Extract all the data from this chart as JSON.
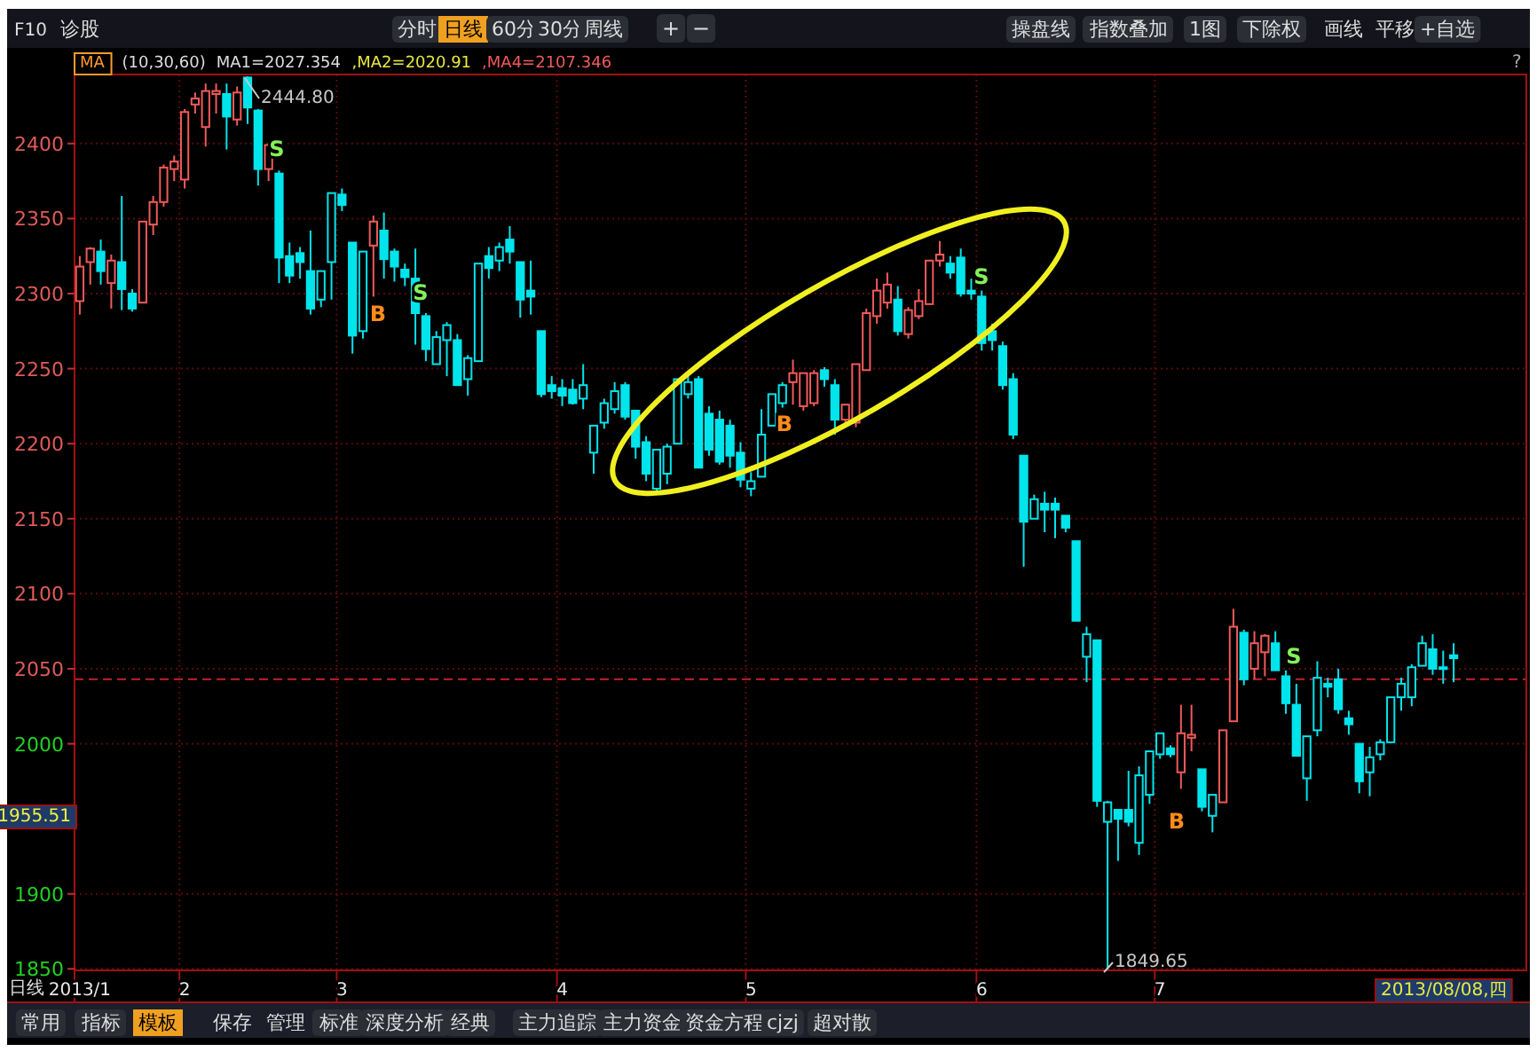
{
  "chart_data": {
    "type": "candlestick",
    "categories": [
      "2013/1",
      null,
      null,
      null,
      null,
      null,
      null,
      null,
      null,
      null,
      "2",
      null,
      null,
      null,
      null,
      null,
      null,
      null,
      null,
      null,
      null,
      null,
      null,
      null,
      null,
      "3",
      null,
      null,
      null,
      null,
      null,
      null,
      null,
      null,
      null,
      null,
      null,
      null,
      null,
      null,
      null,
      null,
      null,
      null,
      null,
      null,
      "4",
      null,
      null,
      null,
      null,
      null,
      null,
      null,
      null,
      null,
      null,
      null,
      null,
      null,
      null,
      null,
      null,
      null,
      "5",
      null,
      null,
      null,
      null,
      null,
      null,
      null,
      null,
      null,
      null,
      null,
      null,
      null,
      null,
      null,
      null,
      null,
      null,
      null,
      null,
      null,
      "6",
      null,
      null,
      null,
      null,
      null,
      null,
      null,
      null,
      null,
      null,
      null,
      null,
      null,
      null,
      null,
      null,
      "7",
      null,
      null,
      null,
      null,
      null,
      null,
      null,
      null,
      null,
      null,
      null,
      null,
      null,
      null,
      null,
      null,
      null,
      null,
      null,
      null,
      null,
      null,
      null,
      null,
      null,
      null,
      null,
      null
    ],
    "ohlc": [
      [
        2295,
        2325,
        2286,
        2318
      ],
      [
        2321,
        2331,
        2306,
        2330
      ],
      [
        2328,
        2336,
        2306,
        2315
      ],
      [
        2307,
        2326,
        2290,
        2322
      ],
      [
        2321,
        2365,
        2289,
        2303
      ],
      [
        2300,
        2303,
        2288,
        2290
      ],
      [
        2294,
        2348,
        2294,
        2348
      ],
      [
        2346,
        2365,
        2339,
        2361
      ],
      [
        2361,
        2386,
        2358,
        2384
      ],
      [
        2383,
        2392,
        2375,
        2388
      ],
      [
        2376,
        2423,
        2370,
        2421
      ],
      [
        2426,
        2434,
        2420,
        2430
      ],
      [
        2411,
        2440,
        2398,
        2435
      ],
      [
        2433,
        2440,
        2420,
        2435
      ],
      [
        2433,
        2440,
        2396,
        2418
      ],
      [
        2416,
        2438,
        2412,
        2434
      ],
      [
        2444,
        2444.8,
        2413,
        2424
      ],
      [
        2422,
        2423,
        2372,
        2383
      ],
      [
        2383,
        2400,
        2375,
        2399
      ],
      [
        2380,
        2382,
        2307,
        2324
      ],
      [
        2325,
        2334,
        2307,
        2312
      ],
      [
        2327,
        2331,
        2310,
        2321
      ],
      [
        2315,
        2342,
        2286,
        2290
      ],
      [
        2296,
        2315,
        2291,
        2315
      ],
      [
        2321,
        2367,
        2296,
        2367
      ],
      [
        2366,
        2370,
        2355,
        2359
      ],
      [
        2334,
        2334,
        2260,
        2272
      ],
      [
        2275,
        2328,
        2270,
        2328
      ],
      [
        2332,
        2352,
        2298,
        2348
      ],
      [
        2342,
        2354,
        2310,
        2323
      ],
      [
        2328,
        2330,
        2308,
        2318
      ],
      [
        2316,
        2320,
        2305,
        2311
      ],
      [
        2310,
        2330,
        2266,
        2287
      ],
      [
        2285,
        2287,
        2255,
        2263
      ],
      [
        2253,
        2275,
        2253,
        2271
      ],
      [
        2269,
        2281,
        2245,
        2279
      ],
      [
        2269,
        2273,
        2239,
        2239
      ],
      [
        2243,
        2259,
        2232,
        2257
      ],
      [
        2255,
        2320,
        2255,
        2320
      ],
      [
        2325,
        2331,
        2310,
        2317
      ],
      [
        2322,
        2334,
        2315,
        2331
      ],
      [
        2336,
        2345,
        2320,
        2328
      ],
      [
        2321,
        2321,
        2284,
        2296
      ],
      [
        2302,
        2322,
        2286,
        2298
      ],
      [
        2275,
        2275,
        2231,
        2233
      ],
      [
        2239,
        2245,
        2230,
        2235
      ],
      [
        2237,
        2243,
        2225,
        2232
      ],
      [
        2236,
        2243,
        2226,
        2227
      ],
      [
        2230,
        2253,
        2223,
        2239
      ],
      [
        2194,
        2212,
        2180,
        2212
      ],
      [
        2214,
        2230,
        2210,
        2227
      ],
      [
        2223,
        2241,
        2220,
        2235
      ],
      [
        2239,
        2241,
        2216,
        2218
      ],
      [
        2222,
        2222,
        2190,
        2198
      ],
      [
        2201,
        2205,
        2175,
        2180
      ],
      [
        2170,
        2196,
        2167,
        2196
      ],
      [
        2180,
        2200,
        2173,
        2198
      ],
      [
        2200,
        2243,
        2200,
        2243
      ],
      [
        2233,
        2246,
        2230,
        2241
      ],
      [
        2243,
        2245,
        2184,
        2184
      ],
      [
        2220,
        2225,
        2192,
        2196
      ],
      [
        2216,
        2222,
        2186,
        2188
      ],
      [
        2212,
        2216,
        2184,
        2192
      ],
      [
        2194,
        2201,
        2171,
        2176
      ],
      [
        2170,
        2181,
        2165,
        2175
      ],
      [
        2178,
        2223,
        2178,
        2206
      ],
      [
        2212,
        2233,
        2212,
        2233
      ],
      [
        2227,
        2241,
        2224,
        2239
      ],
      [
        2241,
        2256,
        2226,
        2247
      ],
      [
        2225,
        2247,
        2222,
        2247
      ],
      [
        2227,
        2249,
        2225,
        2247
      ],
      [
        2249,
        2251,
        2238,
        2243
      ],
      [
        2239,
        2243,
        2206,
        2216
      ],
      [
        2216,
        2226,
        2212,
        2226
      ],
      [
        2214,
        2253,
        2211,
        2253
      ],
      [
        2249,
        2290,
        2249,
        2287
      ],
      [
        2285,
        2310,
        2280,
        2302
      ],
      [
        2294,
        2314,
        2290,
        2306
      ],
      [
        2296,
        2305,
        2272,
        2275
      ],
      [
        2273,
        2291,
        2270,
        2289
      ],
      [
        2285,
        2303,
        2283,
        2295
      ],
      [
        2293,
        2322,
        2293,
        2322
      ],
      [
        2322,
        2335,
        2318,
        2326
      ],
      [
        2320,
        2325,
        2310,
        2314
      ],
      [
        2324,
        2330,
        2298,
        2300
      ],
      [
        2302,
        2310,
        2296,
        2300
      ],
      [
        2298,
        2302,
        2262,
        2267
      ],
      [
        2275,
        2280,
        2262,
        2269
      ],
      [
        2265,
        2268,
        2236,
        2239
      ],
      [
        2243,
        2247,
        2203,
        2206
      ],
      [
        2192,
        2192,
        2118,
        2148
      ],
      [
        2150,
        2166,
        2150,
        2163
      ],
      [
        2160,
        2168,
        2141,
        2156
      ],
      [
        2160,
        2164,
        2137,
        2156
      ],
      [
        2152,
        2152,
        2141,
        2144
      ],
      [
        2135,
        2135,
        2082,
        2082
      ],
      [
        2058,
        2078,
        2041,
        2073
      ],
      [
        2069,
        2069,
        1958,
        1962
      ],
      [
        1948,
        1962,
        1849.65,
        1961
      ],
      [
        1956,
        1956,
        1922,
        1950
      ],
      [
        1956,
        1982,
        1945,
        1948
      ],
      [
        1934,
        1985,
        1926,
        1979
      ],
      [
        1966,
        1995,
        1960,
        1995
      ],
      [
        1993,
        2007,
        1990,
        2007
      ],
      [
        1997,
        1999,
        1991,
        1993
      ],
      [
        1981,
        2026,
        1970,
        2007
      ],
      [
        2004,
        2026,
        1995,
        2006
      ],
      [
        1983,
        1983,
        1955,
        1958
      ],
      [
        1952,
        1966,
        1941,
        1966
      ],
      [
        1961,
        2009,
        1961,
        2009
      ],
      [
        2015,
        2090,
        2015,
        2078
      ],
      [
        2074,
        2076,
        2039,
        2043
      ],
      [
        2050,
        2075,
        2043,
        2067
      ],
      [
        2061,
        2073,
        2045,
        2072
      ],
      [
        2067,
        2075,
        2049,
        2049
      ],
      [
        2045,
        2049,
        2020,
        2027
      ],
      [
        2026,
        2040,
        1992,
        1992
      ],
      [
        1977,
        2005,
        1962,
        2005
      ],
      [
        2009,
        2055,
        2005,
        2044
      ],
      [
        2040,
        2044,
        2031,
        2038
      ],
      [
        2043,
        2050,
        2020,
        2023
      ],
      [
        2017,
        2022,
        2006,
        2013
      ],
      [
        2000,
        2000,
        1967,
        1975
      ],
      [
        1981,
        1998,
        1965,
        1991
      ],
      [
        1993,
        2003,
        1989,
        2001
      ],
      [
        2001,
        2031,
        2001,
        2031
      ],
      [
        2031,
        2044,
        2022,
        2040
      ],
      [
        2031,
        2053,
        2025,
        2051
      ],
      [
        2052,
        2072,
        2052,
        2067
      ],
      [
        2063,
        2073,
        2046,
        2050
      ],
      [
        2051,
        2062,
        2040,
        2050
      ],
      [
        2059,
        2067,
        2041,
        2057
      ]
    ],
    "colors": [
      "#f05a5a",
      "#f05a5a",
      "#00e4ec",
      "#f05a5a",
      "#00e4ec",
      "#00e4ec",
      "#f05a5a",
      "#f05a5a",
      "#f05a5a",
      "#f05a5a",
      "#f05a5a",
      "#f05a5a",
      "#f05a5a",
      "#f05a5a",
      "#00e4ec",
      "#f05a5a",
      "#00e4ec",
      "#00e4ec",
      "#f05a5a",
      "#00e4ec",
      "#00e4ec",
      "#00e4ec",
      "#00e4ec",
      "#00e4ec",
      "#00e4ec",
      "#00e4ec",
      "#00e4ec",
      "#00e4ec",
      "#f05a5a",
      "#00e4ec",
      "#00e4ec",
      "#00e4ec",
      "#00e4ec",
      "#00e4ec",
      "#00e4ec",
      "#00e4ec",
      "#00e4ec",
      "#00e4ec",
      "#00e4ec",
      "#00e4ec",
      "#00e4ec",
      "#00e4ec",
      "#00e4ec",
      "#00e4ec",
      "#00e4ec",
      "#00e4ec",
      "#00e4ec",
      "#00e4ec",
      "#00e4ec",
      "#00e4ec",
      "#00e4ec",
      "#00e4ec",
      "#00e4ec",
      "#00e4ec",
      "#00e4ec",
      "#00e4ec",
      "#00e4ec",
      "#00e4ec",
      "#00e4ec",
      "#00e4ec",
      "#00e4ec",
      "#00e4ec",
      "#00e4ec",
      "#00e4ec",
      "#00e4ec",
      "#00e4ec",
      "#00e4ec",
      "#00e4ec",
      "#f05a5a",
      "#f05a5a",
      "#f05a5a",
      "#00e4ec",
      "#00e4ec",
      "#f05a5a",
      "#f05a5a",
      "#f05a5a",
      "#f05a5a",
      "#f05a5a",
      "#00e4ec",
      "#f05a5a",
      "#f05a5a",
      "#f05a5a",
      "#f05a5a",
      "#00e4ec",
      "#00e4ec",
      "#00e4ec",
      "#00e4ec",
      "#00e4ec",
      "#00e4ec",
      "#00e4ec",
      "#00e4ec",
      "#00e4ec",
      "#00e4ec",
      "#00e4ec",
      "#00e4ec",
      "#00e4ec",
      "#00e4ec",
      "#00e4ec",
      "#00e4ec",
      "#00e4ec",
      "#00e4ec",
      "#00e4ec",
      "#00e4ec",
      "#00e4ec",
      "#00e4ec",
      "#f05a5a",
      "#f05a5a",
      "#00e4ec",
      "#00e4ec",
      "#f05a5a",
      "#f05a5a",
      "#00e4ec",
      "#f05a5a",
      "#f05a5a",
      "#00e4ec",
      "#00e4ec",
      "#00e4ec",
      "#00e4ec",
      "#00e4ec",
      "#00e4ec",
      "#00e4ec",
      "#00e4ec",
      "#00e4ec",
      "#00e4ec",
      "#00e4ec",
      "#00e4ec",
      "#00e4ec",
      "#00e4ec",
      "#00e4ec",
      "#00e4ec",
      "#00e4ec",
      "#00e4ec"
    ],
    "ylim": [
      1849,
      2446
    ],
    "yticks": [
      1850,
      1900,
      2000,
      2050,
      2100,
      2150,
      2200,
      2250,
      2300,
      2350,
      2400
    ],
    "grid": true,
    "ref_lines": [
      {
        "axis": "y",
        "value": 2043,
        "color": "#c8202a",
        "line_style": "dashed"
      }
    ],
    "annotations": [
      "F10",
      "诊股",
      "分时",
      "日线",
      "60分",
      "30分",
      "周线",
      "+",
      "−",
      "操盘线",
      "指数叠加",
      "1图",
      "下除权",
      "画线",
      "平移",
      "+自选",
      "MA",
      "(10,30,60)",
      "MA1=2027.354",
      ",MA2=2020.91",
      ",MA4=2107.346",
      "?",
      "日线",
      "常用",
      "指标",
      "模板",
      "保存",
      "管理",
      "标准",
      "深度分析",
      "经典",
      "主力追踪",
      "主力资金",
      "资金方程",
      "cjzj",
      "超对散",
      "2013/08/08,四",
      "2444.80",
      "1849.65",
      "1955.51",
      "S",
      "B",
      "S",
      "B",
      "S",
      "B",
      "S"
    ]
  }
}
